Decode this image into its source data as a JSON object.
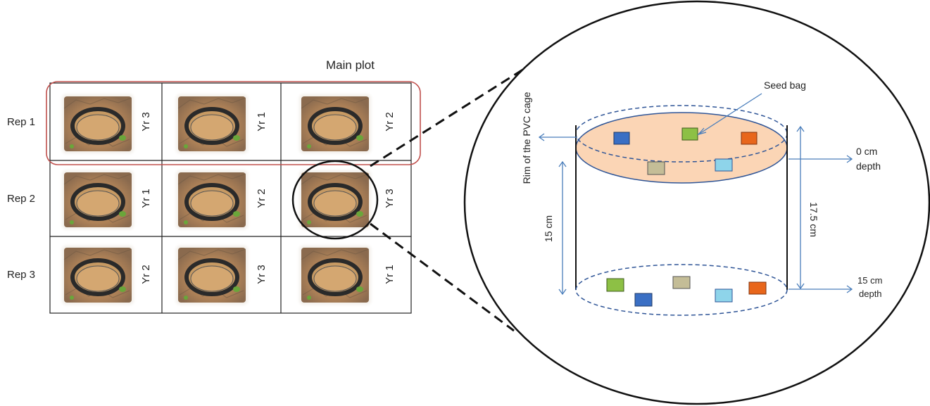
{
  "main_plot_label": "Main plot",
  "reps": [
    {
      "label": "Rep 1",
      "years": [
        "Yr 3",
        "Yr 1",
        "Yr 2"
      ]
    },
    {
      "label": "Rep 2",
      "years": [
        "Yr 1",
        "Yr 2",
        "Yr 3"
      ]
    },
    {
      "label": "Rep 3",
      "years": [
        "Yr 2",
        "Yr 3",
        "Yr 1"
      ]
    }
  ],
  "detail": {
    "seed_bag_label": "Seed bag",
    "rim_label": "Rim of the PVC cage",
    "top_depth_line1": "0 cm",
    "top_depth_line2": "depth",
    "bottom_depth_line1": "15 cm",
    "bottom_depth_line2": "depth",
    "inner_height_label": "15 cm",
    "outer_height_label": "17.5 cm"
  },
  "colors": {
    "main_plot_outline": "#c0504d",
    "top_surface_fill": "#fbd5b5",
    "top_surface_stroke": "#2f5597",
    "arrow": "#4a7ebb",
    "bag_blue": "#3a6fc4",
    "bag_green": "#8dc045",
    "bag_orange": "#e8661b",
    "bag_tan": "#c4bd97",
    "bag_light_blue": "#8ed4ea"
  }
}
